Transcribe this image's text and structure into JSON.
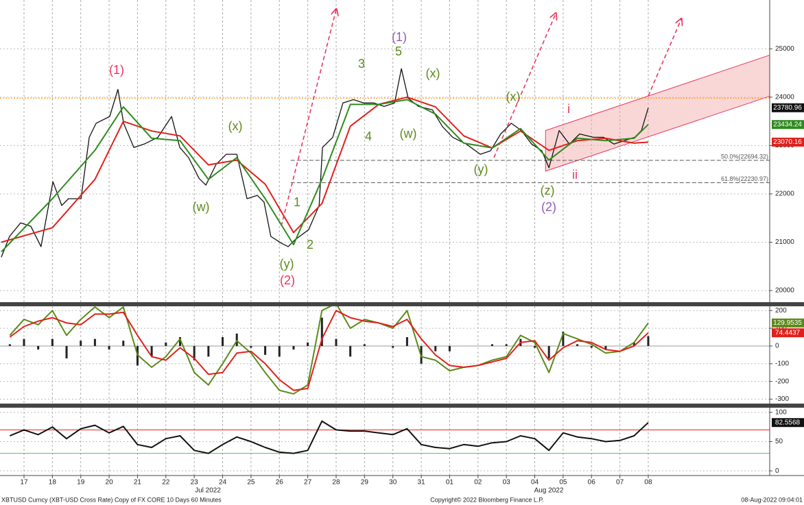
{
  "chart_data": [
    {
      "type": "line",
      "xlim": [
        -0.846,
        26.28
      ],
      "xticks": [
        {
          "value": 0,
          "label": "17"
        },
        {
          "value": 1,
          "label": "18"
        },
        {
          "value": 2,
          "label": "19"
        },
        {
          "value": 3,
          "label": "20"
        },
        {
          "value": 4,
          "label": "21"
        },
        {
          "value": 5,
          "label": "22"
        },
        {
          "value": 6,
          "label": "23"
        },
        {
          "value": 7,
          "label": "24"
        },
        {
          "value": 8,
          "label": "25"
        },
        {
          "value": 9,
          "label": "26"
        },
        {
          "value": 10,
          "label": "27"
        },
        {
          "value": 11,
          "label": "28"
        },
        {
          "value": 12,
          "label": "29"
        },
        {
          "value": 13,
          "label": "30"
        },
        {
          "value": 14,
          "label": "31"
        },
        {
          "value": 15,
          "label": "01"
        },
        {
          "value": 16,
          "label": "02"
        },
        {
          "value": 17,
          "label": "03"
        },
        {
          "value": 18,
          "label": "04"
        },
        {
          "value": 19,
          "label": "05"
        },
        {
          "value": 20,
          "label": "06"
        },
        {
          "value": 21,
          "label": "07"
        },
        {
          "value": 22,
          "label": "08"
        }
      ],
      "x_period_labels": [
        "Jul 2022",
        "Aug 2022"
      ],
      "ylim": [
        19760,
        26010
      ],
      "yticks": [
        20000,
        21000,
        22000,
        23000,
        24000,
        25000
      ],
      "grid": true,
      "series": [
        {
          "color": "#111111",
          "last_value_tag": true,
          "x": [
            -0.8,
            -0.51,
            -0.12,
            0.24,
            0.6,
            1.02,
            1.33,
            1.57,
            2.01,
            2.3,
            2.54,
            3.02,
            3.31,
            3.51,
            3.87,
            4.23,
            4.72,
            5.2,
            5.49,
            5.8,
            6.17,
            6.41,
            6.77,
            7.13,
            7.5,
            7.86,
            8.22,
            8.46,
            8.7,
            9.07,
            9.31,
            9.55,
            10.03,
            10.4,
            10.52,
            10.88,
            11.24,
            11.61,
            11.97,
            12.33,
            12.69,
            13.06,
            13.3,
            13.54,
            13.9,
            14.39,
            14.75,
            15.11,
            15.59,
            16.08,
            16.44,
            16.8,
            17.17,
            17.53,
            17.89,
            18.25,
            18.5,
            18.86,
            19.22,
            19.58,
            20.07,
            20.43,
            20.79,
            21.16,
            21.52,
            21.76,
            22
          ],
          "values": [
            20690,
            21120,
            21400,
            21330,
            20910,
            22250,
            21760,
            21900,
            21900,
            23170,
            23460,
            23600,
            24160,
            23460,
            22960,
            23030,
            23170,
            23600,
            22960,
            22750,
            22320,
            22180,
            22610,
            22820,
            22820,
            21900,
            21970,
            21830,
            21120,
            20980,
            20910,
            21050,
            21260,
            21760,
            22960,
            23170,
            23880,
            23950,
            23880,
            23880,
            23810,
            23880,
            24590,
            23980,
            23810,
            23740,
            23390,
            23170,
            23030,
            22820,
            22890,
            23240,
            23460,
            23310,
            23030,
            22890,
            22540,
            23310,
            23030,
            23240,
            23170,
            23170,
            23030,
            23100,
            23170,
            23310,
            23780.96
          ]
        },
        {
          "color": "#e0201b",
          "last_value_tag": true,
          "x": [
            -0.8,
            1,
            2.5,
            3.5,
            4.5,
            5.5,
            6.5,
            7.5,
            8.5,
            9.5,
            10.5,
            11.5,
            12.5,
            13.5,
            14.5,
            15.5,
            16.5,
            17.5,
            18.5,
            19.5,
            20.5,
            21.5,
            22
          ],
          "values": [
            21000,
            21300,
            22300,
            23500,
            23300,
            23200,
            22600,
            22700,
            22200,
            21200,
            21800,
            23400,
            23850,
            24000,
            23800,
            23200,
            22950,
            23300,
            22900,
            23100,
            23150,
            23050,
            23070.16
          ]
        },
        {
          "color": "#2e8b1e",
          "last_value_tag": true,
          "x": [
            -0.8,
            1,
            2.5,
            3.5,
            4.5,
            5.5,
            6.5,
            7.5,
            8.5,
            9.5,
            10.5,
            11.5,
            12.5,
            13.5,
            14.5,
            15.5,
            16.5,
            17.5,
            18.5,
            19.5,
            20.5,
            21.5,
            22
          ],
          "values": [
            20800,
            21900,
            22900,
            23800,
            23150,
            23100,
            22300,
            22750,
            21900,
            20950,
            22300,
            23850,
            23850,
            23950,
            23650,
            23050,
            22950,
            23350,
            22700,
            23150,
            23100,
            23150,
            23434.24
          ]
        }
      ],
      "hlines": [
        {
          "value": 23980,
          "color": "#ff8c00",
          "dash": "2,2"
        },
        {
          "value": 22694.32,
          "label": "50.0%(22694.32)",
          "color": "#555555",
          "dash": "6,3",
          "from": 9.4
        },
        {
          "value": 22230.97,
          "label": "61.8%(22230.97)",
          "color": "#555555",
          "dash": "6,3",
          "from": 9.4
        }
      ],
      "channel": {
        "x": [
          18.38,
          26.28
        ],
        "upper": [
          23310,
          24870
        ],
        "lower": [
          22470,
          24020
        ],
        "color": "#f4a6a6"
      },
      "annotations": [
        {
          "text": "(1)",
          "color": "#e8365d"
        },
        {
          "text": "(2)",
          "color": "#e8365d"
        },
        {
          "text": "(x)",
          "color": "#5b8a1a"
        },
        {
          "text": "(w)",
          "color": "#5b8a1a"
        },
        {
          "text": "(y)",
          "color": "#5b8a1a"
        },
        {
          "text": "1",
          "color": "#5b8a1a"
        },
        {
          "text": "2",
          "color": "#5b8a1a"
        },
        {
          "text": "3",
          "color": "#5b8a1a"
        },
        {
          "text": "4",
          "color": "#5b8a1a"
        },
        {
          "text": "5",
          "color": "#5b8a1a"
        },
        {
          "text": "(1)",
          "color": "#8a5cb8"
        },
        {
          "text": "(w)",
          "color": "#5b8a1a"
        },
        {
          "text": "(x)",
          "color": "#5b8a1a"
        },
        {
          "text": "(y)",
          "color": "#5b8a1a"
        },
        {
          "text": "(x)",
          "color": "#5b8a1a"
        },
        {
          "text": "i",
          "color": "#e8365d"
        },
        {
          "text": "ii",
          "color": "#e8365d"
        },
        {
          "text": "(z)",
          "color": "#5b8a1a"
        },
        {
          "text": "(2)",
          "color": "#8a5cb8"
        }
      ]
    },
    {
      "type": "line",
      "ylim": [
        -325,
        224
      ],
      "yticks": [
        -300,
        -200,
        -100,
        0,
        100,
        200
      ],
      "grid": true,
      "series": [
        {
          "type": "bar",
          "color": "#222222",
          "x": [
            -0.5,
            0,
            0.5,
            1,
            1.5,
            2,
            2.5,
            3,
            3.5,
            4,
            4.5,
            5,
            5.5,
            6,
            6.5,
            7,
            7.5,
            8,
            8.5,
            9,
            9.5,
            10,
            10.5,
            11,
            11.5,
            12,
            12.5,
            13,
            13.5,
            14,
            14.5,
            15,
            15.5,
            16,
            16.5,
            17,
            17.5,
            18,
            18.5,
            19,
            19.5,
            20,
            20.5,
            21,
            21.5,
            22
          ],
          "values": [
            10,
            40,
            -20,
            40,
            -70,
            30,
            40,
            -20,
            30,
            -110,
            -60,
            20,
            50,
            -80,
            -60,
            50,
            70,
            -10,
            -50,
            -60,
            -20,
            20,
            160,
            40,
            -60,
            10,
            0,
            -10,
            50,
            -100,
            -30,
            -30,
            0,
            0,
            10,
            10,
            40,
            -10,
            -70,
            80,
            10,
            -10,
            -20,
            0,
            20,
            55.5098
          ]
        },
        {
          "color": "#5b8a1a",
          "last_value_tag": true,
          "x": [
            -0.5,
            0,
            0.5,
            1,
            1.5,
            2,
            2.5,
            3,
            3.5,
            4,
            4.5,
            5,
            5.5,
            6,
            6.5,
            7,
            7.5,
            8,
            8.5,
            9,
            9.5,
            10,
            10.5,
            11,
            11.5,
            12,
            12.5,
            13,
            13.5,
            14,
            14.5,
            15,
            15.5,
            16,
            16.5,
            17,
            17.5,
            18,
            18.5,
            19,
            19.5,
            20,
            20.5,
            21,
            21.5,
            22
          ],
          "values": [
            60,
            150,
            120,
            200,
            60,
            150,
            220,
            160,
            220,
            -50,
            -120,
            -60,
            40,
            -150,
            -220,
            -100,
            30,
            -40,
            -150,
            -250,
            -270,
            -220,
            200,
            240,
            100,
            150,
            130,
            100,
            200,
            -60,
            -80,
            -140,
            -120,
            -110,
            -80,
            -60,
            60,
            20,
            -150,
            70,
            40,
            10,
            -40,
            -30,
            20,
            129.9535
          ]
        },
        {
          "color": "#e0201b",
          "last_value_tag": true,
          "x": [
            -0.5,
            0,
            0.5,
            1,
            1.5,
            2,
            2.5,
            3,
            3.5,
            4,
            4.5,
            5,
            5.5,
            6,
            6.5,
            7,
            7.5,
            8,
            8.5,
            9,
            9.5,
            10,
            10.5,
            11,
            11.5,
            12,
            12.5,
            13,
            13.5,
            14,
            14.5,
            15,
            15.5,
            16,
            16.5,
            17,
            17.5,
            18,
            18.5,
            19,
            19.5,
            20,
            20.5,
            21,
            21.5,
            22
          ],
          "values": [
            50,
            110,
            140,
            160,
            130,
            120,
            180,
            180,
            190,
            60,
            -60,
            -80,
            -10,
            -70,
            -160,
            -150,
            -40,
            -30,
            -100,
            -190,
            -250,
            -240,
            40,
            200,
            160,
            140,
            130,
            110,
            150,
            40,
            -50,
            -110,
            -120,
            -110,
            -90,
            -70,
            20,
            30,
            -80,
            -10,
            30,
            20,
            -20,
            -30,
            0,
            74.4437
          ]
        }
      ],
      "hlines": [
        {
          "value": 0,
          "color": "#999999",
          "dash": "0"
        }
      ]
    },
    {
      "type": "line",
      "ylim": [
        -8,
        108
      ],
      "yticks": [
        0,
        50,
        100
      ],
      "grid": true,
      "series": [
        {
          "color": "#111111",
          "last_value_tag": true,
          "x": [
            -0.5,
            0,
            0.5,
            1,
            1.5,
            2,
            2.5,
            3,
            3.5,
            4,
            4.5,
            5,
            5.5,
            6,
            6.5,
            7,
            7.5,
            8,
            8.5,
            9,
            9.5,
            10,
            10.5,
            11,
            11.5,
            12,
            12.5,
            13,
            13.5,
            14,
            14.5,
            15,
            15.5,
            16,
            16.5,
            17,
            17.5,
            18,
            18.5,
            19,
            19.5,
            20,
            20.5,
            21,
            21.5,
            22
          ],
          "values": [
            60,
            70,
            62,
            75,
            55,
            72,
            78,
            65,
            76,
            45,
            40,
            55,
            60,
            35,
            30,
            45,
            58,
            50,
            40,
            32,
            30,
            35,
            85,
            70,
            68,
            68,
            65,
            62,
            72,
            45,
            40,
            38,
            45,
            42,
            48,
            50,
            60,
            55,
            35,
            65,
            58,
            55,
            50,
            52,
            60,
            82.5568
          ]
        }
      ],
      "hlines": [
        {
          "value": 70,
          "color": "#e0201b",
          "dash": "0"
        },
        {
          "value": 30,
          "color": "#3cd13c",
          "dash": "0"
        }
      ]
    }
  ],
  "footer": {
    "left": "XBTUSD Curncy (XBT-USD Cross Rate) Copy of FX CORE 10 Days 60 Minutes",
    "center": "Copyright© 2022 Bloomberg Finance L.P.",
    "right": "08-Aug-2022 09:04:01"
  }
}
